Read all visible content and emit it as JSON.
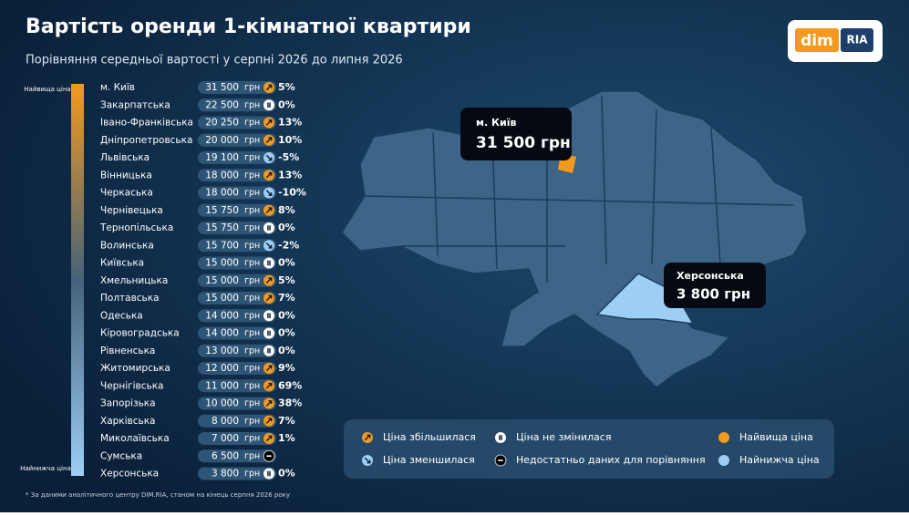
{
  "header": {
    "title": "Вартість оренди 1-кімнатної квартири",
    "subtitle": "Порівняння середньої вартості у серпні 2026 до липня 2026",
    "logo": {
      "left": "dim",
      "right": "RIA"
    }
  },
  "scale": {
    "top": "Найвища ціна",
    "bottom": "Найнижча ціна"
  },
  "unit": "грн",
  "rows": [
    {
      "region": "м. Київ",
      "price": "31 500",
      "trend": "up",
      "change": "5%"
    },
    {
      "region": "Закарпатська",
      "price": "22 500",
      "trend": "same",
      "change": "0%"
    },
    {
      "region": "Івано-Франківська",
      "price": "20 250",
      "trend": "up",
      "change": "13%"
    },
    {
      "region": "Дніпропетровська",
      "price": "20 000",
      "trend": "up",
      "change": "10%"
    },
    {
      "region": "Львівська",
      "price": "19 100",
      "trend": "down",
      "change": "-5%"
    },
    {
      "region": "Вінницька",
      "price": "18 000",
      "trend": "up",
      "change": "13%"
    },
    {
      "region": "Черкаська",
      "price": "18 000",
      "trend": "down",
      "change": "-10%"
    },
    {
      "region": "Чернівецька",
      "price": "15 750",
      "trend": "up",
      "change": "8%"
    },
    {
      "region": "Тернопільська",
      "price": "15 750",
      "trend": "same",
      "change": "0%"
    },
    {
      "region": "Волинська",
      "price": "15 700",
      "trend": "down",
      "change": "-2%"
    },
    {
      "region": "Київська",
      "price": "15 000",
      "trend": "same",
      "change": "0%"
    },
    {
      "region": "Хмельницька",
      "price": "15 000",
      "trend": "up",
      "change": "5%"
    },
    {
      "region": "Полтавська",
      "price": "15 000",
      "trend": "up",
      "change": "7%"
    },
    {
      "region": "Одеська",
      "price": "14 000",
      "trend": "same",
      "change": "0%"
    },
    {
      "region": "Кіровоградська",
      "price": "14 000",
      "trend": "same",
      "change": "0%"
    },
    {
      "region": "Рівненська",
      "price": "13 000",
      "trend": "same",
      "change": "0%"
    },
    {
      "region": "Житомирська",
      "price": "12 000",
      "trend": "up",
      "change": "9%"
    },
    {
      "region": "Чернігівська",
      "price": "11 000",
      "trend": "up",
      "change": "69%"
    },
    {
      "region": "Запорізька",
      "price": "10 000",
      "trend": "up",
      "change": "38%"
    },
    {
      "region": "Харківська",
      "price": "8 000",
      "trend": "up",
      "change": "7%"
    },
    {
      "region": "Миколаївська",
      "price": "7 000",
      "trend": "up",
      "change": "1%"
    },
    {
      "region": "Сумська",
      "price": "6 500",
      "trend": "none"
    },
    {
      "region": "Херсонська",
      "price": "3 800",
      "trend": "same",
      "change": "0%"
    }
  ],
  "callouts": [
    {
      "label": "м. Київ",
      "price": "31 500 грн"
    },
    {
      "label": "Херсонська",
      "price": "3 800 грн"
    }
  ],
  "legend": [
    {
      "icon": "up",
      "label": "Ціна збільшилася"
    },
    {
      "icon": "same",
      "label": "Ціна не змінилася"
    },
    {
      "icon": "high",
      "label": "Найвища ціна"
    },
    {
      "icon": "down",
      "label": "Ціна зменшилася"
    },
    {
      "icon": "none",
      "label": "Недостатньо даних для порівняння"
    },
    {
      "icon": "low",
      "label": "Найнижча ціна"
    }
  ],
  "footnote": "* За даними аналітичного центру DIM.RIA, станом на кінець серпня 2026 року"
}
